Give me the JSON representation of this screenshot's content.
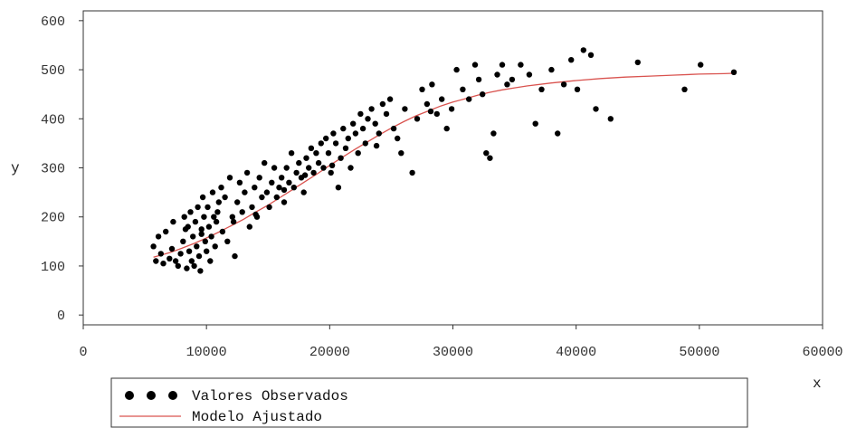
{
  "chart_data": {
    "type": "scatter",
    "title": "",
    "xlabel": "x",
    "ylabel": "y",
    "xlim": [
      0,
      60000
    ],
    "ylim": [
      -20,
      620
    ],
    "x_ticks": [
      "0",
      "10000",
      "20000",
      "30000",
      "40000",
      "50000",
      "60000"
    ],
    "x_tick_values": [
      0,
      10000,
      20000,
      30000,
      40000,
      50000,
      60000
    ],
    "y_ticks": [
      "0",
      "100",
      "200",
      "300",
      "400",
      "500",
      "600"
    ],
    "y_tick_values": [
      0,
      100,
      200,
      300,
      400,
      500,
      600
    ],
    "grid": false,
    "legend": {
      "position": "bottom",
      "items": [
        {
          "label": "Valores Observados",
          "kind": "points",
          "color": "#000000"
        },
        {
          "label": "Modelo Ajustado",
          "kind": "line",
          "color": "#d9534f"
        }
      ]
    },
    "series": [
      {
        "name": "Valores Observados",
        "kind": "points",
        "color": "#000000",
        "points": [
          [
            5700,
            140
          ],
          [
            5900,
            110
          ],
          [
            6100,
            160
          ],
          [
            6300,
            125
          ],
          [
            6500,
            105
          ],
          [
            6700,
            170
          ],
          [
            7000,
            115
          ],
          [
            7200,
            135
          ],
          [
            7300,
            190
          ],
          [
            7500,
            110
          ],
          [
            7700,
            100
          ],
          [
            7900,
            125
          ],
          [
            8100,
            150
          ],
          [
            8200,
            200
          ],
          [
            8300,
            175
          ],
          [
            8400,
            95
          ],
          [
            8500,
            180
          ],
          [
            8600,
            130
          ],
          [
            8700,
            210
          ],
          [
            8800,
            110
          ],
          [
            8900,
            160
          ],
          [
            9000,
            100
          ],
          [
            9100,
            190
          ],
          [
            9200,
            140
          ],
          [
            9300,
            220
          ],
          [
            9400,
            120
          ],
          [
            9500,
            90
          ],
          [
            9600,
            175
          ],
          [
            9700,
            240
          ],
          [
            9800,
            200
          ],
          [
            9900,
            150
          ],
          [
            10000,
            130
          ],
          [
            10100,
            220
          ],
          [
            10200,
            180
          ],
          [
            10300,
            110
          ],
          [
            10400,
            160
          ],
          [
            10500,
            250
          ],
          [
            10600,
            200
          ],
          [
            10700,
            140
          ],
          [
            10800,
            190
          ],
          [
            11000,
            230
          ],
          [
            11200,
            260
          ],
          [
            11300,
            170
          ],
          [
            11500,
            240
          ],
          [
            11700,
            150
          ],
          [
            11900,
            280
          ],
          [
            12100,
            200
          ],
          [
            12300,
            120
          ],
          [
            12500,
            230
          ],
          [
            12700,
            270
          ],
          [
            12900,
            210
          ],
          [
            13100,
            250
          ],
          [
            13300,
            290
          ],
          [
            13500,
            180
          ],
          [
            13700,
            220
          ],
          [
            13900,
            260
          ],
          [
            14100,
            200
          ],
          [
            14300,
            280
          ],
          [
            14500,
            240
          ],
          [
            14700,
            310
          ],
          [
            14900,
            250
          ],
          [
            15100,
            220
          ],
          [
            15300,
            270
          ],
          [
            15500,
            300
          ],
          [
            15700,
            240
          ],
          [
            15900,
            260
          ],
          [
            16100,
            280
          ],
          [
            16300,
            230
          ],
          [
            16500,
            300
          ],
          [
            16700,
            270
          ],
          [
            16900,
            330
          ],
          [
            17100,
            260
          ],
          [
            17300,
            290
          ],
          [
            17500,
            310
          ],
          [
            17700,
            280
          ],
          [
            17900,
            250
          ],
          [
            18100,
            320
          ],
          [
            18300,
            300
          ],
          [
            18500,
            340
          ],
          [
            18700,
            290
          ],
          [
            18900,
            330
          ],
          [
            19100,
            310
          ],
          [
            19300,
            350
          ],
          [
            19500,
            300
          ],
          [
            19700,
            360
          ],
          [
            19900,
            330
          ],
          [
            20100,
            290
          ],
          [
            20300,
            370
          ],
          [
            20500,
            350
          ],
          [
            20700,
            260
          ],
          [
            20900,
            320
          ],
          [
            21100,
            380
          ],
          [
            21300,
            340
          ],
          [
            21500,
            360
          ],
          [
            21700,
            300
          ],
          [
            21900,
            390
          ],
          [
            22100,
            370
          ],
          [
            22300,
            330
          ],
          [
            22500,
            410
          ],
          [
            22700,
            380
          ],
          [
            22900,
            350
          ],
          [
            23100,
            400
          ],
          [
            23400,
            420
          ],
          [
            23700,
            390
          ],
          [
            24000,
            370
          ],
          [
            24300,
            430
          ],
          [
            24600,
            410
          ],
          [
            24900,
            440
          ],
          [
            25200,
            380
          ],
          [
            25500,
            360
          ],
          [
            25800,
            330
          ],
          [
            26100,
            420
          ],
          [
            26700,
            290
          ],
          [
            27100,
            400
          ],
          [
            27500,
            460
          ],
          [
            27900,
            430
          ],
          [
            28300,
            470
          ],
          [
            28700,
            410
          ],
          [
            29100,
            440
          ],
          [
            29500,
            380
          ],
          [
            29900,
            420
          ],
          [
            30300,
            500
          ],
          [
            30800,
            460
          ],
          [
            31300,
            440
          ],
          [
            31800,
            510
          ],
          [
            32100,
            480
          ],
          [
            32400,
            450
          ],
          [
            32700,
            330
          ],
          [
            33000,
            320
          ],
          [
            33300,
            370
          ],
          [
            33600,
            490
          ],
          [
            34000,
            510
          ],
          [
            34400,
            470
          ],
          [
            34800,
            480
          ],
          [
            35500,
            510
          ],
          [
            36200,
            490
          ],
          [
            36700,
            390
          ],
          [
            37200,
            460
          ],
          [
            38000,
            500
          ],
          [
            38500,
            370
          ],
          [
            39000,
            470
          ],
          [
            39600,
            520
          ],
          [
            40100,
            460
          ],
          [
            40600,
            540
          ],
          [
            41200,
            530
          ],
          [
            41600,
            420
          ],
          [
            42800,
            400
          ],
          [
            45000,
            515
          ],
          [
            48800,
            460
          ],
          [
            50100,
            510
          ],
          [
            52800,
            495
          ],
          [
            9600,
            165
          ],
          [
            10900,
            210
          ],
          [
            12200,
            190
          ],
          [
            14000,
            205
          ],
          [
            16300,
            255
          ],
          [
            18000,
            285
          ],
          [
            20200,
            305
          ],
          [
            23800,
            345
          ],
          [
            28200,
            415
          ]
        ]
      },
      {
        "name": "Modelo Ajustado",
        "kind": "line",
        "color": "#d9534f",
        "points": [
          [
            5700,
            118
          ],
          [
            7000,
            127
          ],
          [
            8000,
            136
          ],
          [
            9000,
            146
          ],
          [
            10000,
            157
          ],
          [
            11000,
            169
          ],
          [
            12000,
            182
          ],
          [
            13000,
            195
          ],
          [
            14000,
            210
          ],
          [
            15000,
            224
          ],
          [
            16000,
            240
          ],
          [
            17000,
            256
          ],
          [
            18000,
            272
          ],
          [
            19000,
            288
          ],
          [
            20000,
            305
          ],
          [
            21000,
            321
          ],
          [
            22000,
            337
          ],
          [
            23000,
            352
          ],
          [
            24000,
            367
          ],
          [
            25000,
            381
          ],
          [
            26000,
            394
          ],
          [
            27000,
            406
          ],
          [
            28000,
            416
          ],
          [
            29000,
            426
          ],
          [
            30000,
            434
          ],
          [
            31000,
            441
          ],
          [
            32000,
            448
          ],
          [
            33000,
            454
          ],
          [
            34000,
            459
          ],
          [
            35000,
            463
          ],
          [
            36000,
            467
          ],
          [
            38000,
            473
          ],
          [
            40000,
            478
          ],
          [
            42000,
            482
          ],
          [
            44000,
            485
          ],
          [
            46000,
            487
          ],
          [
            48000,
            489
          ],
          [
            50000,
            491
          ],
          [
            52000,
            492
          ],
          [
            53000,
            493
          ]
        ]
      }
    ]
  }
}
